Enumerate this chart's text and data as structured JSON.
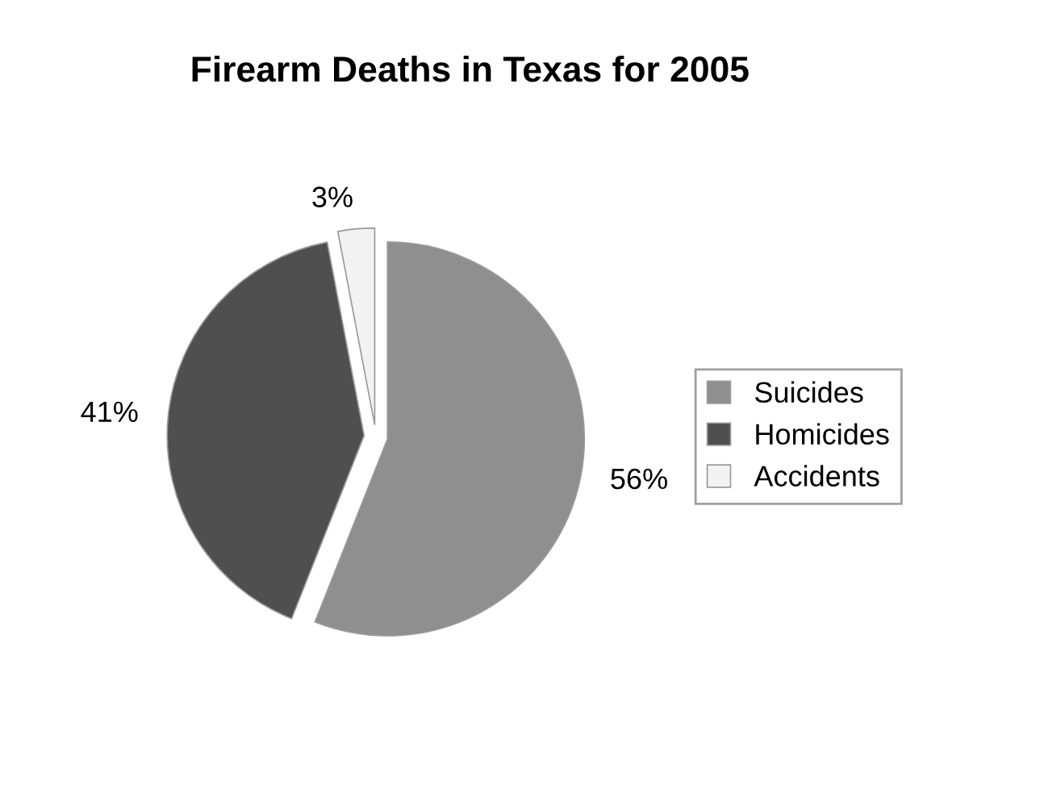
{
  "chart_data": {
    "type": "pie",
    "title": "Firearm Deaths in Texas for 2005",
    "categories": [
      "Suicides",
      "Homicides",
      "Accidents"
    ],
    "values": [
      56,
      41,
      3
    ],
    "value_labels": [
      "56%",
      "41%",
      "3%"
    ],
    "colors": [
      "#8f8f8f",
      "#4f4f4f",
      "#f2f2f2"
    ],
    "legend": "right"
  }
}
